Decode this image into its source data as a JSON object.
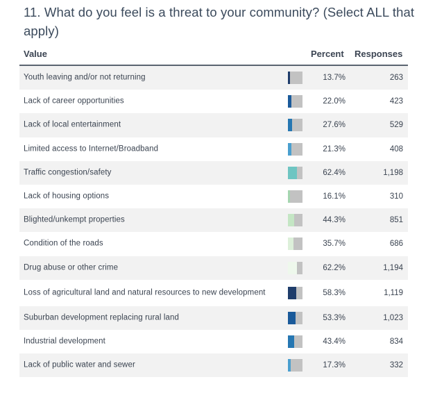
{
  "question": {
    "title": "11. What do you feel is a threat to your community? (Select ALL that apply)"
  },
  "table": {
    "headers": {
      "value": "Value",
      "percent": "Percent",
      "responses": "Responses"
    },
    "rows": [
      {
        "label": "Youth leaving and/or not returning",
        "percent": "13.7%",
        "responses": "263",
        "fraction": 0.137,
        "color": "#1f3d6b"
      },
      {
        "label": "Lack of career opportunities",
        "percent": "22.0%",
        "responses": "423",
        "fraction": 0.22,
        "color": "#1a5a9a"
      },
      {
        "label": "Lack of local entertainment",
        "percent": "27.6%",
        "responses": "529",
        "fraction": 0.276,
        "color": "#2677b2"
      },
      {
        "label": "Limited access to Internet/Broadband",
        "percent": "21.3%",
        "responses": "408",
        "fraction": 0.213,
        "color": "#4a9fcf"
      },
      {
        "label": "Traffic congestion/safety",
        "percent": "62.4%",
        "responses": "1,198",
        "fraction": 0.624,
        "color": "#6ec5c2"
      },
      {
        "label": "Lack of housing options",
        "percent": "16.1%",
        "responses": "310",
        "fraction": 0.161,
        "color": "#a5d6b0"
      },
      {
        "label": "Blighted/unkempt properties",
        "percent": "44.3%",
        "responses": "851",
        "fraction": 0.443,
        "color": "#c4e6c4"
      },
      {
        "label": "Condition of the roads",
        "percent": "35.7%",
        "responses": "686",
        "fraction": 0.357,
        "color": "#ddf0da"
      },
      {
        "label": "Drug abuse or other crime",
        "percent": "62.2%",
        "responses": "1,194",
        "fraction": 0.622,
        "color": "#eef8ec"
      },
      {
        "label": "Loss of agricultural land and natural resources to new development",
        "percent": "58.3%",
        "responses": "1,119",
        "fraction": 0.583,
        "color": "#1f3d6b"
      },
      {
        "label": "Suburban development replacing rural land",
        "percent": "53.3%",
        "responses": "1,023",
        "fraction": 0.533,
        "color": "#1a5a9a"
      },
      {
        "label": "Industrial development",
        "percent": "43.4%",
        "responses": "834",
        "fraction": 0.434,
        "color": "#2677b2"
      },
      {
        "label": "Lack of public water and sewer",
        "percent": "17.3%",
        "responses": "332",
        "fraction": 0.173,
        "color": "#4a9fcf"
      }
    ]
  }
}
